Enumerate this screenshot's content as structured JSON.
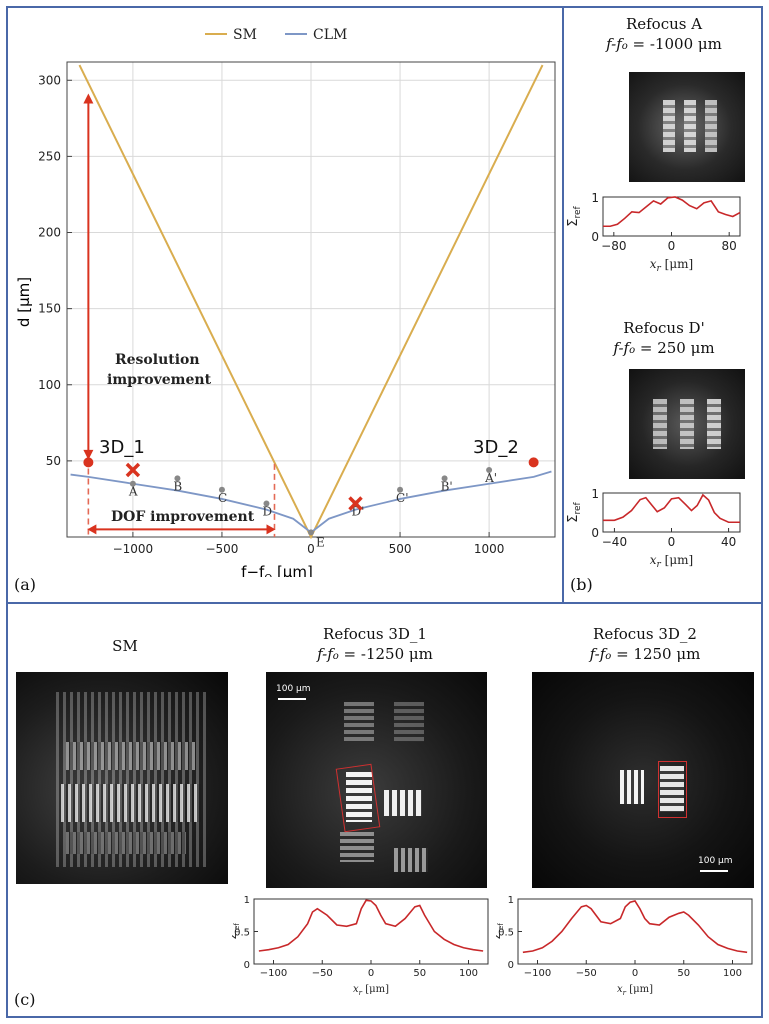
{
  "panel_a": {
    "label": "(a)",
    "legend": [
      "SM",
      "CLM"
    ],
    "xlabel": "f−f",
    "xlabel_sub": "O",
    "xlabel_unit": " [μm]",
    "ylabel": "d [μm]",
    "resolution_text": [
      "Resolution",
      "improvement"
    ],
    "dof_text": "DOF improvement",
    "marker_3d1": "3D_1",
    "marker_3d2": "3D_2"
  },
  "panel_b": {
    "label": "(b)",
    "top_title": "Refocus A",
    "top_sub": "f-f",
    "top_sub_o": "o",
    "top_value": " = -1000 μm",
    "bottom_title": "Refocus D'",
    "bottom_sub": "f-f",
    "bottom_sub_o": "o",
    "bottom_value": " = 250 μm",
    "ylabel": "Σ",
    "ylabel_sub": "ref",
    "xlabel": "x",
    "xlabel_sub": "r",
    "xlabel_unit": " [μm]"
  },
  "panel_c": {
    "label": "(c)",
    "sm_title": "SM",
    "r1_title": "Refocus 3D_1",
    "r1_sub": "f-f",
    "r1_sub_o": "o",
    "r1_value": " = -1250 μm",
    "r2_title": "Refocus 3D_2",
    "r2_sub": "f-f",
    "r2_sub_o": "o",
    "r2_value": " = 1250 μm",
    "scalebar": "100 μm",
    "ylabel": "Σ",
    "ylabel_sub": "ref",
    "xlabel": "x",
    "xlabel_sub": "r",
    "xlabel_unit": " [μm]"
  },
  "colors": {
    "sm": "#d9ad4f",
    "clm": "#7e97c6",
    "accent": "#d9331f",
    "frame": "#4a68a8"
  },
  "chart_data": [
    {
      "type": "line",
      "title": "",
      "xlabel": "f−fO [μm]",
      "ylabel": "d [μm]",
      "xlim": [
        -1370,
        1370
      ],
      "ylim": [
        0,
        312
      ],
      "xticks": [
        -1000,
        -500,
        0,
        500,
        1000
      ],
      "yticks": [
        50,
        100,
        150,
        200,
        250,
        300
      ],
      "grid": true,
      "legend_position": "top",
      "series": [
        {
          "name": "SM",
          "color": "#d9ad4f",
          "x": [
            -1300,
            0,
            1300
          ],
          "y": [
            310,
            0,
            310
          ]
        },
        {
          "name": "CLM",
          "color": "#7e97c6",
          "x": [
            -1350,
            -1250,
            -1000,
            -750,
            -500,
            -250,
            -100,
            0,
            100,
            250,
            500,
            750,
            1000,
            1250,
            1350
          ],
          "y": [
            41,
            39.5,
            35,
            30.5,
            25,
            18,
            12,
            3,
            12,
            18,
            25,
            30.5,
            35,
            39.5,
            43
          ]
        }
      ],
      "points": [
        {
          "label": "A",
          "x": -1000,
          "y": 35
        },
        {
          "label": "B",
          "x": -750,
          "y": 38.5
        },
        {
          "label": "C",
          "x": -500,
          "y": 31
        },
        {
          "label": "D",
          "x": -250,
          "y": 22
        },
        {
          "label": "E",
          "x": 0,
          "y": 3
        },
        {
          "label": "D'",
          "x": 250,
          "y": 22
        },
        {
          "label": "C'",
          "x": 500,
          "y": 31
        },
        {
          "label": "B'",
          "x": 750,
          "y": 38.5
        },
        {
          "label": "A'",
          "x": 1000,
          "y": 44
        }
      ],
      "crosses": [
        {
          "x": -1000,
          "y": 44
        },
        {
          "x": 250,
          "y": 22
        }
      ],
      "red_points": [
        {
          "label": "3D_1",
          "x": -1250,
          "y": 49
        },
        {
          "label": "3D_2",
          "x": 1250,
          "y": 49
        }
      ]
    },
    {
      "type": "line",
      "title": "Refocus A",
      "xlabel": "xr [μm]",
      "ylabel": "Σref",
      "xlim": [
        -95,
        95
      ],
      "ylim": [
        0,
        1
      ],
      "xticks": [
        -80,
        0,
        80
      ],
      "yticks": [
        0,
        1
      ],
      "series": [
        {
          "name": "",
          "color": "#c8282a",
          "x": [
            -95,
            -85,
            -75,
            -65,
            -55,
            -45,
            -35,
            -25,
            -15,
            -5,
            5,
            15,
            25,
            35,
            45,
            55,
            65,
            75,
            85,
            95
          ],
          "y": [
            0.25,
            0.25,
            0.3,
            0.45,
            0.62,
            0.6,
            0.75,
            0.9,
            0.82,
            0.98,
            1.0,
            0.92,
            0.78,
            0.7,
            0.85,
            0.9,
            0.62,
            0.55,
            0.5,
            0.6
          ]
        }
      ]
    },
    {
      "type": "line",
      "title": "Refocus D'",
      "xlabel": "xr [μm]",
      "ylabel": "Σref",
      "xlim": [
        -48,
        48
      ],
      "ylim": [
        0,
        1
      ],
      "xticks": [
        -40,
        0,
        40
      ],
      "yticks": [
        0,
        1
      ],
      "series": [
        {
          "name": "",
          "color": "#c8282a",
          "x": [
            -48,
            -40,
            -34,
            -28,
            -22,
            -18,
            -14,
            -10,
            -5,
            0,
            5,
            10,
            14,
            18,
            22,
            26,
            30,
            34,
            40,
            48
          ],
          "y": [
            0.3,
            0.3,
            0.38,
            0.55,
            0.83,
            0.88,
            0.7,
            0.52,
            0.62,
            0.85,
            0.88,
            0.7,
            0.55,
            0.68,
            0.95,
            0.82,
            0.5,
            0.35,
            0.25,
            0.25
          ]
        }
      ]
    },
    {
      "type": "line",
      "title": "Refocus 3D_1",
      "xlabel": "xr [μm]",
      "ylabel": "Σref",
      "xlim": [
        -120,
        120
      ],
      "ylim": [
        0,
        1
      ],
      "xticks": [
        -100,
        -50,
        0,
        50,
        100
      ],
      "yticks": [
        0,
        0.5,
        1
      ],
      "series": [
        {
          "name": "",
          "color": "#c8282a",
          "x": [
            -115,
            -105,
            -95,
            -85,
            -75,
            -65,
            -60,
            -55,
            -45,
            -35,
            -25,
            -15,
            -10,
            -5,
            0,
            5,
            10,
            15,
            25,
            35,
            45,
            50,
            55,
            65,
            75,
            85,
            95,
            105,
            115
          ],
          "y": [
            0.2,
            0.22,
            0.25,
            0.3,
            0.42,
            0.62,
            0.8,
            0.85,
            0.75,
            0.6,
            0.58,
            0.62,
            0.85,
            0.98,
            0.97,
            0.9,
            0.75,
            0.62,
            0.58,
            0.7,
            0.88,
            0.9,
            0.75,
            0.5,
            0.38,
            0.3,
            0.25,
            0.22,
            0.2
          ]
        }
      ]
    },
    {
      "type": "line",
      "title": "Refocus 3D_2",
      "xlabel": "xr [μm]",
      "ylabel": "Σref",
      "xlim": [
        -120,
        120
      ],
      "ylim": [
        0,
        1
      ],
      "xticks": [
        -100,
        -50,
        0,
        50,
        100
      ],
      "yticks": [
        0,
        0.5,
        1
      ],
      "series": [
        {
          "name": "",
          "color": "#c8282a",
          "x": [
            -115,
            -105,
            -95,
            -85,
            -75,
            -65,
            -55,
            -50,
            -45,
            -35,
            -25,
            -15,
            -10,
            -5,
            0,
            5,
            10,
            15,
            25,
            35,
            45,
            50,
            55,
            65,
            75,
            85,
            95,
            105,
            115
          ],
          "y": [
            0.18,
            0.2,
            0.25,
            0.35,
            0.5,
            0.7,
            0.88,
            0.9,
            0.85,
            0.65,
            0.62,
            0.7,
            0.88,
            0.95,
            0.97,
            0.85,
            0.7,
            0.62,
            0.6,
            0.72,
            0.78,
            0.8,
            0.75,
            0.6,
            0.42,
            0.3,
            0.24,
            0.2,
            0.18
          ]
        }
      ]
    }
  ]
}
